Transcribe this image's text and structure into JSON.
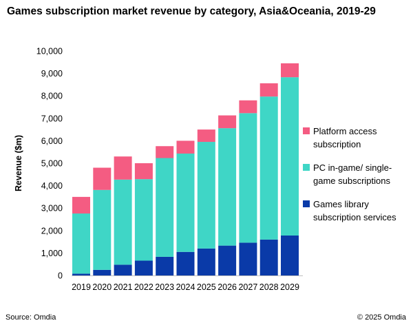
{
  "title": "Games subscription market revenue by category, Asia&Oceania, 2019-29",
  "footer": {
    "source": "Source: Omdia",
    "copyright": "© 2025 Omdia"
  },
  "chart_data": {
    "type": "bar",
    "stacked": true,
    "title": "Games subscription market revenue by category, Asia&Oceania, 2019-29",
    "xlabel": "",
    "ylabel": "Revenue ($m)",
    "ylim": [
      0,
      10000
    ],
    "yticks": [
      0,
      1000,
      2000,
      3000,
      4000,
      5000,
      6000,
      7000,
      8000,
      9000,
      10000
    ],
    "ytick_labels": [
      "0",
      "1,000",
      "2,000",
      "3,000",
      "4,000",
      "5,000",
      "6,000",
      "7,000",
      "8,000",
      "9,000",
      "10,000"
    ],
    "grid": false,
    "legend_position": "right",
    "categories": [
      "2019",
      "2020",
      "2021",
      "2022",
      "2023",
      "2024",
      "2025",
      "2026",
      "2027",
      "2028",
      "2029"
    ],
    "series": [
      {
        "name": "Games library subscription services",
        "legend_lines": [
          "Games library",
          "subscription services"
        ],
        "color": "#0a3aa8",
        "values": [
          80,
          250,
          480,
          660,
          830,
          1050,
          1200,
          1330,
          1460,
          1600,
          1780
        ]
      },
      {
        "name": "PC in-game/ single-game subscriptions",
        "legend_lines": [
          "PC in-game/ single-",
          "game subscriptions"
        ],
        "color": "#3fd6c6",
        "values": [
          2680,
          3560,
          3790,
          3630,
          4400,
          4380,
          4750,
          5230,
          5770,
          6370,
          7050
        ]
      },
      {
        "name": "Platform access subscription",
        "legend_lines": [
          "Platform access",
          "subscription"
        ],
        "color": "#f45c82",
        "values": [
          740,
          990,
          1030,
          710,
          530,
          570,
          550,
          570,
          570,
          590,
          620
        ]
      }
    ]
  }
}
